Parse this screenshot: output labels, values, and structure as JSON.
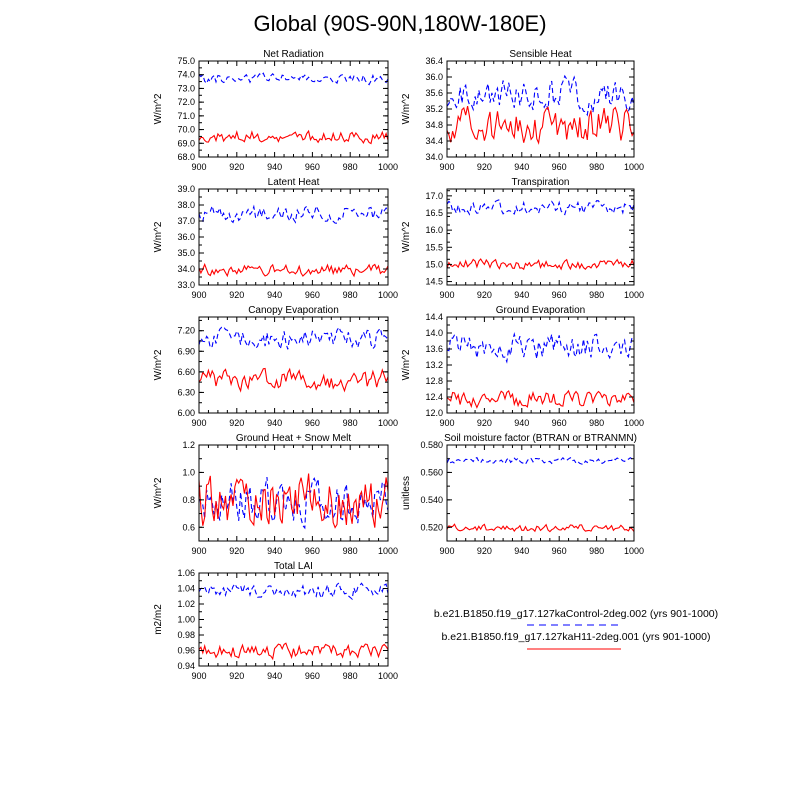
{
  "title": "Global (90S-90N,180W-180E)",
  "legend": {
    "items": [
      {
        "label": "b.e21.B1850.f19_g17.127kaControl-2deg.002 (yrs 901-1000)",
        "color": "#0000ff",
        "dash": "dashed"
      },
      {
        "label": "b.e21.B1850.f19_g17.127kaH11-2deg.001 (yrs 901-1000)",
        "color": "#ff0000",
        "dash": "solid"
      }
    ]
  },
  "chart_data": [
    {
      "type": "line",
      "title": "Net Radiation",
      "xlabel": "",
      "ylabel": "W/m^2",
      "xlim": [
        900,
        1000
      ],
      "ylim": [
        68.0,
        75.0
      ],
      "xticks": [
        "900",
        "920",
        "940",
        "960",
        "980",
        "1000"
      ],
      "yticks": [
        "68.0",
        "69.0",
        "70.0",
        "71.0",
        "72.0",
        "73.0",
        "74.0",
        "75.0"
      ],
      "series": [
        {
          "name": "127kaControl-2deg.002",
          "color": "#0000ff",
          "dash": "dashed",
          "mean": 73.7,
          "amp": 0.25,
          "seed": 11
        },
        {
          "name": "127kaH11-2deg.001",
          "color": "#ff0000",
          "dash": "solid",
          "mean": 69.5,
          "amp": 0.3,
          "seed": 12
        }
      ]
    },
    {
      "type": "line",
      "title": "Sensible Heat",
      "xlabel": "",
      "ylabel": "W/m^2",
      "xlim": [
        900,
        1000
      ],
      "ylim": [
        34.0,
        36.4
      ],
      "xticks": [
        "900",
        "920",
        "940",
        "960",
        "980",
        "1000"
      ],
      "yticks": [
        "34.0",
        "34.4",
        "34.8",
        "35.2",
        "35.6",
        "36.0",
        "36.4"
      ],
      "series": [
        {
          "name": "127kaControl-2deg.002",
          "color": "#0000ff",
          "dash": "dashed",
          "mean": 35.55,
          "amp": 0.28,
          "seed": 21
        },
        {
          "name": "127kaH11-2deg.001",
          "color": "#ff0000",
          "dash": "solid",
          "mean": 34.8,
          "amp": 0.3,
          "seed": 22
        }
      ]
    },
    {
      "type": "line",
      "title": "Latent Heat",
      "xlabel": "",
      "ylabel": "W/m^2",
      "xlim": [
        900,
        1000
      ],
      "ylim": [
        33.0,
        39.0
      ],
      "xticks": [
        "900",
        "920",
        "940",
        "960",
        "980",
        "1000"
      ],
      "yticks": [
        "33.0",
        "34.0",
        "35.0",
        "36.0",
        "37.0",
        "38.0",
        "39.0"
      ],
      "series": [
        {
          "name": "127kaControl-2deg.002",
          "color": "#0000ff",
          "dash": "dashed",
          "mean": 37.5,
          "amp": 0.35,
          "seed": 31
        },
        {
          "name": "127kaH11-2deg.001",
          "color": "#ff0000",
          "dash": "solid",
          "mean": 33.95,
          "amp": 0.25,
          "seed": 32
        }
      ]
    },
    {
      "type": "line",
      "title": "Transpiration",
      "xlabel": "",
      "ylabel": "W/m^2",
      "xlim": [
        900,
        1000
      ],
      "ylim": [
        14.4,
        17.2
      ],
      "xticks": [
        "900",
        "920",
        "940",
        "960",
        "980",
        "1000"
      ],
      "yticks": [
        "14.5",
        "15.0",
        "15.5",
        "16.0",
        "16.5",
        "17.0"
      ],
      "series": [
        {
          "name": "127kaControl-2deg.002",
          "color": "#0000ff",
          "dash": "dashed",
          "mean": 16.65,
          "amp": 0.13,
          "seed": 41
        },
        {
          "name": "127kaH11-2deg.001",
          "color": "#ff0000",
          "dash": "solid",
          "mean": 15.0,
          "amp": 0.1,
          "seed": 42
        }
      ]
    },
    {
      "type": "line",
      "title": "Canopy Evaporation",
      "xlabel": "",
      "ylabel": "W/m^2",
      "xlim": [
        900,
        1000
      ],
      "ylim": [
        6.0,
        7.4
      ],
      "xticks": [
        "900",
        "920",
        "940",
        "960",
        "980",
        "1000"
      ],
      "yticks": [
        "6.00",
        "6.30",
        "6.60",
        "6.90",
        "7.20"
      ],
      "series": [
        {
          "name": "127kaControl-2deg.002",
          "color": "#0000ff",
          "dash": "dashed",
          "mean": 7.08,
          "amp": 0.1,
          "seed": 51
        },
        {
          "name": "127kaH11-2deg.001",
          "color": "#ff0000",
          "dash": "solid",
          "mean": 6.48,
          "amp": 0.1,
          "seed": 52
        }
      ]
    },
    {
      "type": "line",
      "title": "Ground Evaporation",
      "xlabel": "",
      "ylabel": "W/m^2",
      "xlim": [
        900,
        1000
      ],
      "ylim": [
        12.0,
        14.4
      ],
      "xticks": [
        "900",
        "920",
        "940",
        "960",
        "980",
        "1000"
      ],
      "yticks": [
        "12.0",
        "12.4",
        "12.8",
        "13.2",
        "13.6",
        "14.0",
        "14.4"
      ],
      "series": [
        {
          "name": "127kaControl-2deg.002",
          "color": "#0000ff",
          "dash": "dashed",
          "mean": 13.65,
          "amp": 0.22,
          "seed": 61
        },
        {
          "name": "127kaH11-2deg.001",
          "color": "#ff0000",
          "dash": "solid",
          "mean": 12.35,
          "amp": 0.14,
          "seed": 62
        }
      ]
    },
    {
      "type": "line",
      "title": "Ground Heat + Snow Melt",
      "xlabel": "",
      "ylabel": "W/m^2",
      "xlim": [
        900,
        1000
      ],
      "ylim": [
        0.5,
        1.2
      ],
      "xticks": [
        "900",
        "920",
        "940",
        "960",
        "980",
        "1000"
      ],
      "yticks": [
        "0.6",
        "0.8",
        "1.0",
        "1.2"
      ],
      "series": [
        {
          "name": "127kaControl-2deg.002",
          "color": "#0000ff",
          "dash": "dashed",
          "mean": 0.8,
          "amp": 0.11,
          "seed": 71
        },
        {
          "name": "127kaH11-2deg.001",
          "color": "#ff0000",
          "dash": "solid",
          "mean": 0.8,
          "amp": 0.13,
          "seed": 72
        }
      ]
    },
    {
      "type": "line",
      "title": "Soil moisture factor (BTRAN or BTRANMN)",
      "xlabel": "",
      "ylabel": "unitless",
      "xlim": [
        900,
        1000
      ],
      "ylim": [
        0.51,
        0.58
      ],
      "xticks": [
        "900",
        "920",
        "940",
        "960",
        "980",
        "1000"
      ],
      "yticks": [
        "0.520",
        "0.540",
        "0.560",
        "0.580"
      ],
      "series": [
        {
          "name": "127kaControl-2deg.002",
          "color": "#0000ff",
          "dash": "dashed",
          "mean": 0.5685,
          "amp": 0.0015,
          "seed": 81
        },
        {
          "name": "127kaH11-2deg.001",
          "color": "#ff0000",
          "dash": "solid",
          "mean": 0.5195,
          "amp": 0.0018,
          "seed": 82
        }
      ]
    },
    {
      "type": "line",
      "title": "Total LAI",
      "xlabel": "",
      "ylabel": "m2/m2",
      "xlim": [
        900,
        1000
      ],
      "ylim": [
        0.94,
        1.06
      ],
      "xticks": [
        "900",
        "920",
        "940",
        "960",
        "980",
        "1000"
      ],
      "yticks": [
        "0.94",
        "0.96",
        "0.98",
        "1.00",
        "1.02",
        "1.04",
        "1.06"
      ],
      "series": [
        {
          "name": "127kaControl-2deg.002",
          "color": "#0000ff",
          "dash": "dashed",
          "mean": 1.037,
          "amp": 0.006,
          "seed": 91
        },
        {
          "name": "127kaH11-2deg.001",
          "color": "#ff0000",
          "dash": "solid",
          "mean": 0.959,
          "amp": 0.006,
          "seed": 92
        }
      ]
    }
  ]
}
